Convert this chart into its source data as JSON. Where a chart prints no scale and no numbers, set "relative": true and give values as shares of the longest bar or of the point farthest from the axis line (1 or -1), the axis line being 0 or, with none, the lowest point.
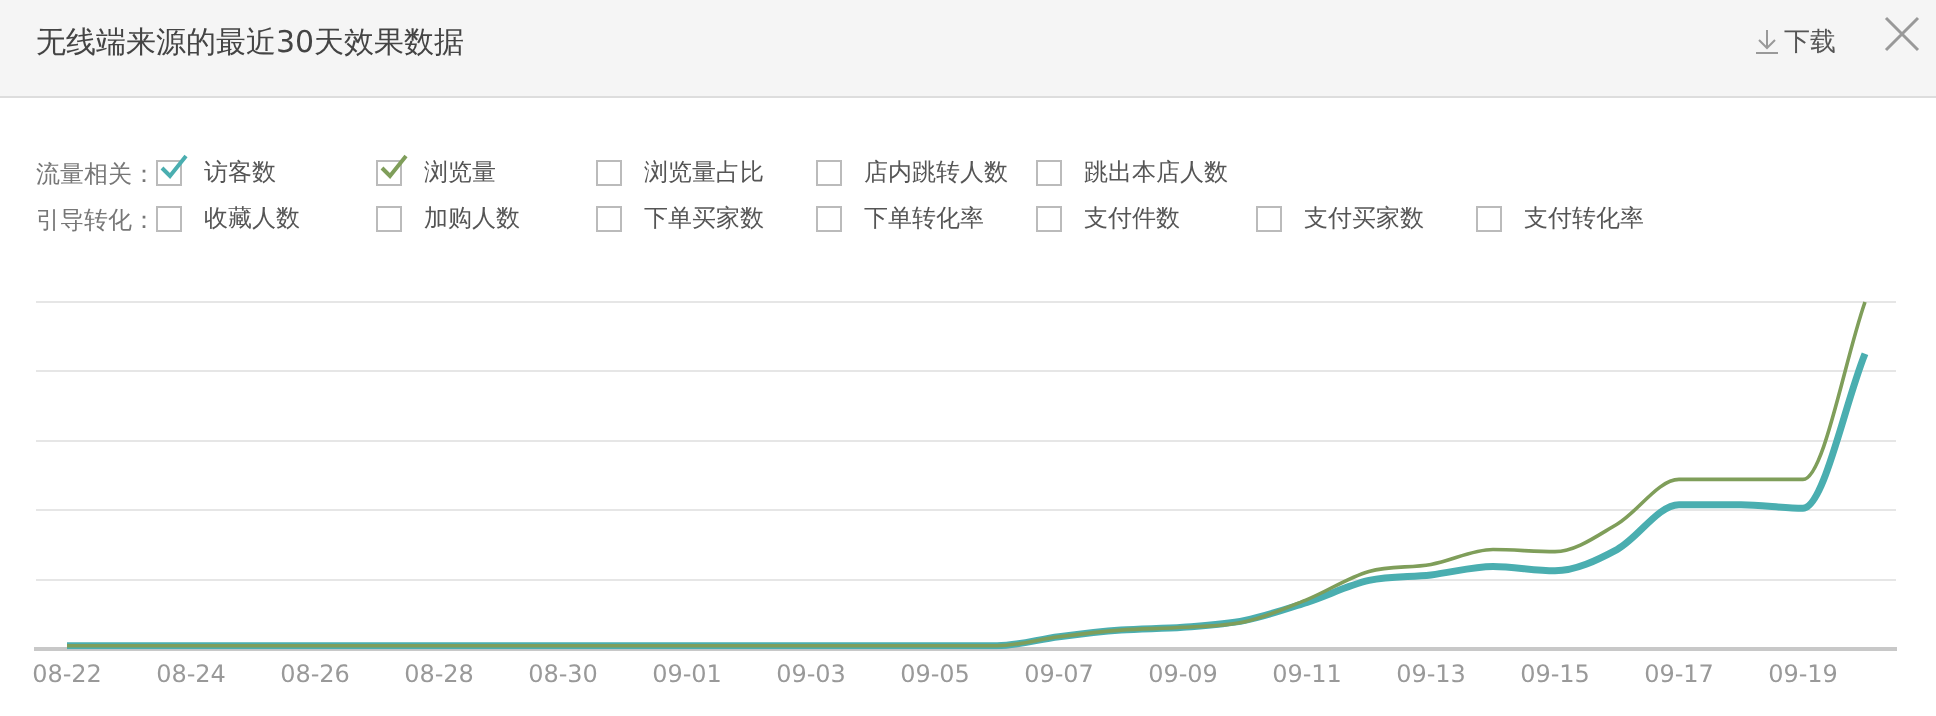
{
  "chart_data": {
    "type": "line",
    "title": "无线端来源的最近30天效果数据",
    "relative": true,
    "grid": "y",
    "legend": "top left",
    "marker": "none",
    "categories": [
      "08-22",
      null,
      "08-24",
      null,
      "08-26",
      null,
      "08-28",
      null,
      "08-30",
      null,
      "09-01",
      null,
      "09-03",
      null,
      "09-05",
      null,
      "09-07",
      null,
      "09-09",
      null,
      "09-11",
      null,
      "09-13",
      null,
      "09-15",
      null,
      "09-17",
      null,
      "09-19",
      null
    ],
    "series": [
      {
        "name": "访客数",
        "color": "#4aaeb0",
        "values": [
          0.01,
          0.01,
          0.01,
          0.01,
          0.01,
          0.01,
          0.01,
          0.01,
          0.01,
          0.01,
          0.01,
          0.01,
          0.01,
          0.01,
          0.01,
          0.01,
          0.036,
          0.055,
          0.063,
          0.083,
          0.135,
          0.198,
          0.214,
          0.238,
          0.226,
          0.287,
          0.416,
          0.416,
          0.406,
          0.851
        ]
      },
      {
        "name": "浏览量",
        "color": "#7f9e5a",
        "values": [
          0.01,
          0.01,
          0.01,
          0.01,
          0.01,
          0.01,
          0.01,
          0.01,
          0.01,
          0.01,
          0.01,
          0.01,
          0.01,
          0.01,
          0.01,
          0.01,
          0.036,
          0.055,
          0.063,
          0.079,
          0.143,
          0.224,
          0.244,
          0.287,
          0.281,
          0.36,
          0.489,
          0.489,
          0.489,
          1
        ]
      }
    ],
    "annotations": [
      "下载",
      "流量相关：",
      "浏览量占比",
      "店内跳转人数",
      "跳出本店人数",
      "引导转化：",
      "收藏人数",
      "加购人数",
      "下单买家数",
      "下单转化率",
      "支付件数",
      "支付买家数",
      "支付转化率"
    ]
  }
}
